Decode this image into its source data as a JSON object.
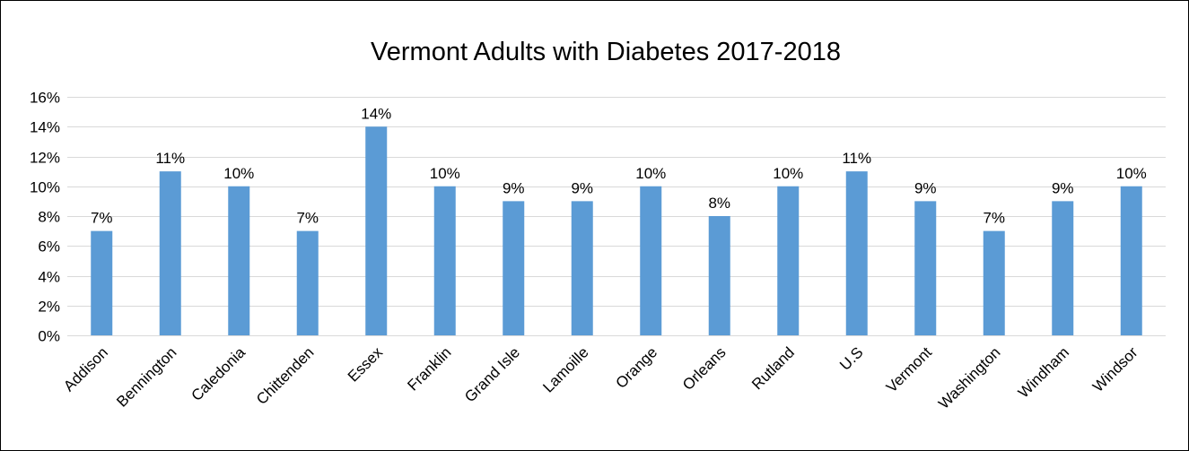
{
  "chart_data": {
    "type": "bar",
    "title": "Vermont Adults with Diabetes 2017-2018",
    "xlabel": "",
    "ylabel": "",
    "categories": [
      "Addison",
      "Bennington",
      "Caledonia",
      "Chittenden",
      "Essex",
      "Franklin",
      "Grand Isle",
      "Lamoille",
      "Orange",
      "Orleans",
      "Rutland",
      "U.S",
      "Vermont",
      "Washington",
      "Windham",
      "Windsor"
    ],
    "values": [
      7,
      11,
      10,
      7,
      14,
      10,
      9,
      9,
      10,
      8,
      10,
      11,
      9,
      7,
      9,
      10
    ],
    "data_labels": [
      "7%",
      "11%",
      "10%",
      "7%",
      "14%",
      "10%",
      "9%",
      "9%",
      "10%",
      "8%",
      "10%",
      "11%",
      "9%",
      "7%",
      "9%",
      "10%"
    ],
    "ylim": [
      0,
      16
    ],
    "yticks": [
      0,
      2,
      4,
      6,
      8,
      10,
      12,
      14,
      16
    ],
    "ytick_labels": [
      "0%",
      "2%",
      "4%",
      "6%",
      "8%",
      "10%",
      "12%",
      "14%",
      "16%"
    ],
    "grid": true,
    "legend": "none",
    "bar_color": "#5b9bd5",
    "grid_color": "#d9d9d9"
  }
}
